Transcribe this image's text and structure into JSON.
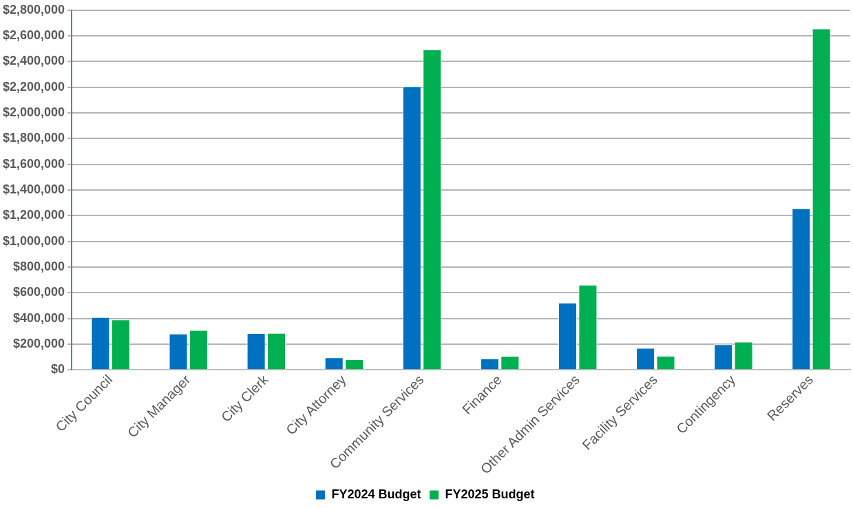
{
  "chart_data": {
    "type": "bar",
    "categories": [
      "City Council",
      "City Manager",
      "City Clerk",
      "City Attorney",
      "Community Services",
      "Finance",
      "Other Admin Services",
      "Facility Services",
      "Contingency",
      "Reserves"
    ],
    "series": [
      {
        "name": "FY2024 Budget",
        "color": "#0070c0",
        "values": [
          411000,
          283000,
          287000,
          98000,
          2207000,
          90000,
          523000,
          171000,
          200000,
          1257000
        ]
      },
      {
        "name": "FY2025 Budget",
        "color": "#00b050",
        "values": [
          392000,
          310000,
          288000,
          83000,
          2494000,
          108000,
          663000,
          110000,
          220000,
          2657000
        ]
      }
    ],
    "ylim": [
      0,
      2800000
    ],
    "yticks": [
      {
        "value": 0,
        "label": "$0"
      },
      {
        "value": 200000,
        "label": "$200,000"
      },
      {
        "value": 400000,
        "label": "$400,000"
      },
      {
        "value": 600000,
        "label": "$600,000"
      },
      {
        "value": 800000,
        "label": "$800,000"
      },
      {
        "value": 1000000,
        "label": "$1,000,000"
      },
      {
        "value": 1200000,
        "label": "$1,200,000"
      },
      {
        "value": 1400000,
        "label": "$1,400,000"
      },
      {
        "value": 1600000,
        "label": "$1,600,000"
      },
      {
        "value": 1800000,
        "label": "$1,800,000"
      },
      {
        "value": 2000000,
        "label": "$2,000,000"
      },
      {
        "value": 2200000,
        "label": "$2,200,000"
      },
      {
        "value": 2400000,
        "label": "$2,400,000"
      },
      {
        "value": 2600000,
        "label": "$2,600,000"
      },
      {
        "value": 2800000,
        "label": "$2,800,000"
      }
    ],
    "grid": "y",
    "legend": "bottom"
  }
}
